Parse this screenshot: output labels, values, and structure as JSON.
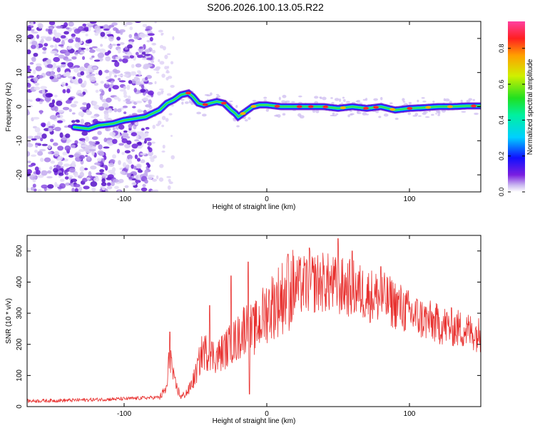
{
  "title": "S206.2026.100.13.05.R22",
  "colors": {
    "snr_line": "#e8312f",
    "axis": "#000000"
  },
  "chart_data": [
    {
      "type": "heatmap",
      "name": "spectrogram",
      "xlabel": "Height of straight line (km)",
      "ylabel": "Frequency (Hz)",
      "xlim": [
        -168,
        150
      ],
      "ylim": [
        -25,
        25
      ],
      "xticks": [
        -100,
        0,
        100
      ],
      "xtick_labels": [
        "-100",
        "0",
        "100"
      ],
      "yticks": [
        20,
        10,
        0,
        -10,
        -20
      ],
      "ytick_labels": [
        "20",
        "10",
        "0",
        "-10",
        "-20"
      ],
      "colorbar": {
        "label": "Normalized spectral amplitude",
        "range": [
          0,
          0.95
        ],
        "ticks": [
          0.0,
          0.2,
          0.4,
          0.6,
          0.8
        ],
        "tick_labels": [
          "0.0",
          "0.2",
          "0.4",
          "0.6",
          "0.8"
        ],
        "colormap": "rainbow"
      },
      "ridge": {
        "x": [
          -135,
          -125,
          -118,
          -108,
          -100,
          -92,
          -85,
          -80,
          -75,
          -70,
          -65,
          -60,
          -55,
          -52,
          -48,
          -44,
          -40,
          -35,
          -30,
          -25,
          -22,
          -20,
          -15,
          -10,
          -5,
          0,
          10,
          20,
          30,
          40,
          50,
          60,
          70,
          80,
          90,
          100,
          110,
          120,
          130,
          140,
          150
        ],
        "y": [
          -6,
          -6.5,
          -5.5,
          -5,
          -4,
          -3.5,
          -3,
          -2,
          -1,
          1,
          2,
          3.5,
          4,
          3,
          1,
          0.5,
          1,
          1.5,
          1,
          -1,
          -2,
          -3,
          -1.5,
          0,
          0.5,
          0.5,
          0,
          0,
          0,
          0,
          -0.5,
          0,
          -0.5,
          0,
          -1,
          -0.5,
          -0.3,
          0,
          0,
          0.2,
          0.2
        ]
      },
      "noise_region_x": [
        -168,
        -80
      ]
    },
    {
      "type": "line",
      "name": "snr",
      "xlabel": "Height of straight line (km)",
      "ylabel": "SNR (10 * v/v)",
      "xlim": [
        -168,
        150
      ],
      "ylim": [
        0,
        550
      ],
      "xticks": [
        -100,
        0,
        100
      ],
      "xtick_labels": [
        "-100",
        "0",
        "100"
      ],
      "yticks": [
        0,
        100,
        200,
        300,
        400,
        500
      ],
      "ytick_labels": [
        "0",
        "100",
        "200",
        "300",
        "400",
        "500"
      ],
      "envelope": {
        "x": [
          -168,
          -140,
          -100,
          -75,
          -70,
          -68,
          -65,
          -60,
          -55,
          -50,
          -45,
          -40,
          -35,
          -30,
          -25,
          -20,
          -15,
          -12,
          -10,
          -5,
          0,
          10,
          20,
          30,
          40,
          50,
          60,
          70,
          80,
          90,
          100,
          110,
          120,
          130,
          140,
          150
        ],
        "y": [
          18,
          20,
          25,
          30,
          60,
          180,
          80,
          30,
          50,
          100,
          180,
          170,
          160,
          180,
          200,
          220,
          260,
          250,
          240,
          270,
          310,
          350,
          385,
          395,
          400,
          385,
          380,
          360,
          350,
          330,
          300,
          280,
          265,
          255,
          245,
          230
        ]
      },
      "spikes": [
        {
          "x": -68,
          "y": 240
        },
        {
          "x": -40,
          "y": 325
        },
        {
          "x": -25,
          "y": 420
        },
        {
          "x": -13,
          "y": 465
        },
        {
          "x": -12,
          "y": 40
        },
        {
          "x": 15,
          "y": 490
        },
        {
          "x": 30,
          "y": 510
        },
        {
          "x": 50,
          "y": 540
        },
        {
          "x": 60,
          "y": 500
        },
        {
          "x": 80,
          "y": 450
        }
      ]
    }
  ]
}
